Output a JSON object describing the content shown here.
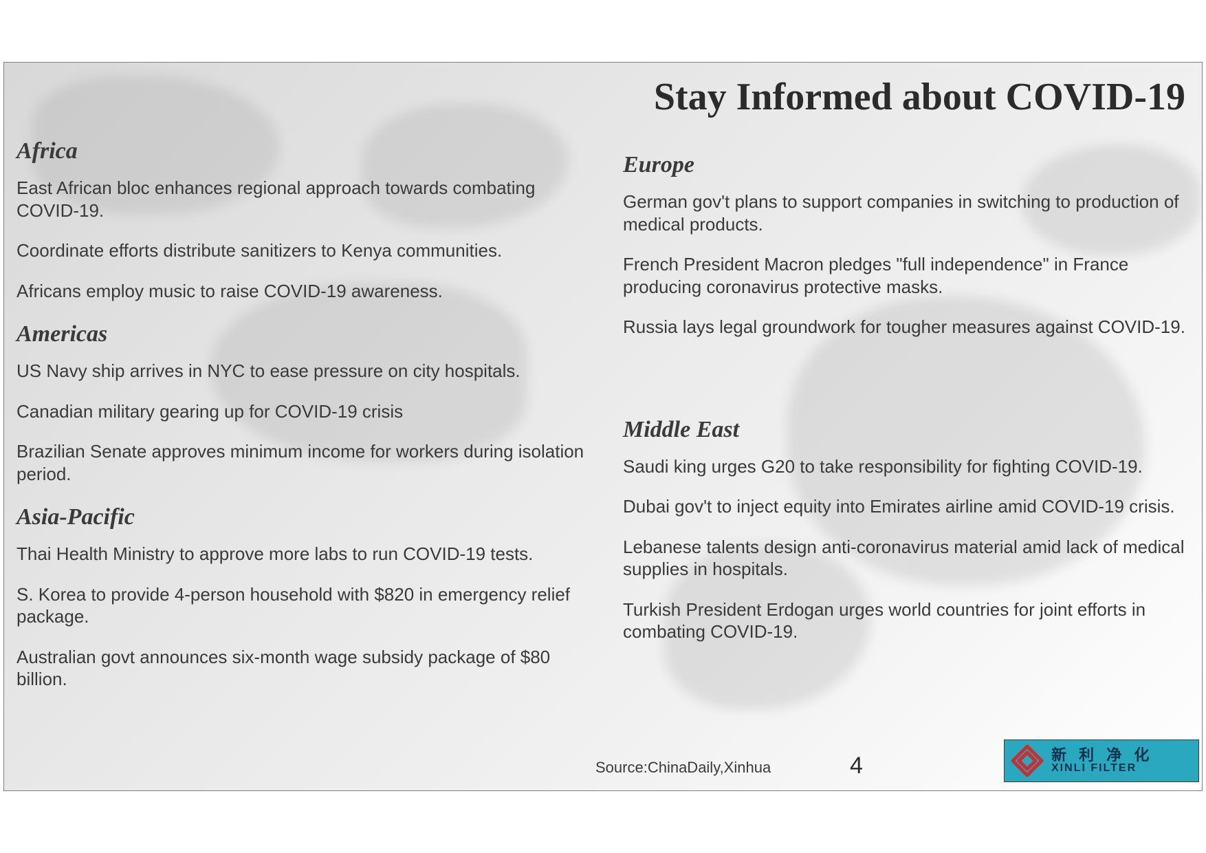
{
  "title": "Stay Informed about COVID-19",
  "page_number": "4",
  "source_label": "Source:ChinaDaily,Xinhua",
  "logo": {
    "cn": "新 利 净 化",
    "en": "XINLI FILTER",
    "badge_color": "#2aa8c0",
    "mark_color": "#c53030"
  },
  "colors": {
    "text": "#3a3a3a",
    "title": "#2b2b2b",
    "border": "#808080"
  },
  "left": [
    {
      "heading": "Africa",
      "items": [
        "East African bloc enhances regional approach towards combating COVID-19.",
        "Coordinate efforts distribute sanitizers to Kenya communities.",
        "Africans employ music to raise COVID-19 awareness."
      ]
    },
    {
      "heading": "Americas",
      "items": [
        "US Navy ship arrives in NYC to ease pressure on city hospitals.",
        "Canadian military gearing up for COVID-19 crisis",
        "Brazilian Senate approves minimum income for workers during isolation period."
      ]
    },
    {
      "heading": "Asia-Pacific",
      "items": [
        "Thai Health Ministry to approve more labs to run COVID-19 tests.",
        "S. Korea to provide 4-person household with $820 in emergency relief package.",
        "Australian govt announces six-month wage subsidy package of $80 billion."
      ]
    }
  ],
  "right": [
    {
      "heading": "Europe",
      "items": [
        "German gov't plans to support companies in switching to production of medical products.",
        "French President Macron pledges \"full independence\" in France producing coronavirus protective masks.",
        "Russia lays legal groundwork for tougher measures against COVID-19."
      ],
      "gap_after": 60
    },
    {
      "heading": "Middle East",
      "items": [
        "Saudi king urges G20 to take responsibility for fighting COVID-19.",
        "Dubai gov't to inject equity into Emirates airline amid COVID-19 crisis.",
        "Lebanese talents design anti-coronavirus material amid lack of medical supplies in hospitals.",
        "Turkish President Erdogan urges world countries for joint efforts in combating COVID-19."
      ]
    }
  ]
}
